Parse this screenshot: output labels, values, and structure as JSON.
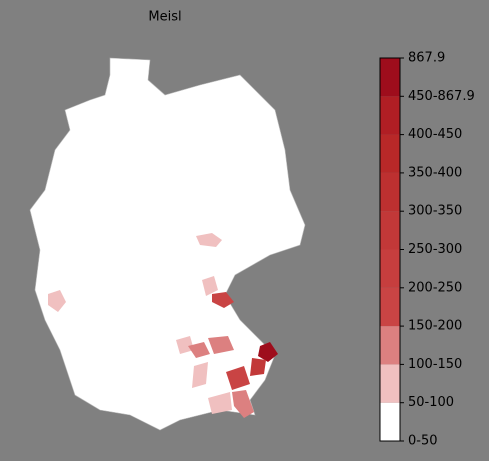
{
  "title": "Meisl",
  "legend": {
    "ticks": [
      "0-50",
      "50-100",
      "100-150",
      "150-200",
      "200-250",
      "250-300",
      "300-350",
      "350-400",
      "400-450",
      "450-867.9",
      "867.9"
    ],
    "colors": [
      "#ffffff",
      "#f0c0c0",
      "#dc8080",
      "#c94444",
      "#c63e3e",
      "#c23838",
      "#bd3030",
      "#b82828",
      "#b01e24",
      "#9e0d1c"
    ]
  }
}
